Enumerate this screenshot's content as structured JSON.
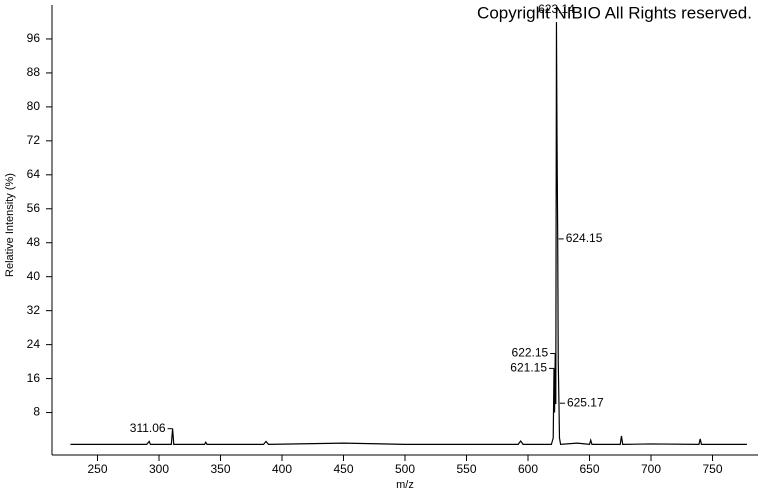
{
  "chart_data": {
    "type": "line",
    "copyright": "Copyright NIBIO All Rights reserved.",
    "x_label": "m/z",
    "y_label": "Relative Intensity (%)",
    "x": [
      228,
      290,
      292,
      293,
      294,
      310,
      311.06,
      312,
      337,
      338,
      339,
      385,
      387,
      389,
      450,
      500,
      560,
      592,
      594,
      596,
      619,
      620.5,
      621.15,
      621.6,
      622.15,
      622.6,
      623.14,
      623.6,
      624.15,
      624.6,
      625.17,
      625.6,
      626.5,
      640,
      650,
      651,
      652,
      675,
      676,
      677,
      700,
      739,
      740,
      741,
      778
    ],
    "values": [
      0.5,
      0.5,
      1.2,
      0.5,
      0.5,
      0.5,
      4.2,
      0.5,
      0.5,
      1,
      0.5,
      0.5,
      1.2,
      0.5,
      0.8,
      0.5,
      0.5,
      0.5,
      1.3,
      0.5,
      0.5,
      2,
      18.4,
      8,
      21.9,
      10,
      100,
      72.7,
      48.9,
      20,
      10.2,
      2,
      0.5,
      0.8,
      0.5,
      1.5,
      0.5,
      0.5,
      2.5,
      0.5,
      0.6,
      0.5,
      1.8,
      0.5,
      0.5
    ],
    "color": "#000000",
    "peak_labels": [
      311.06,
      621.15,
      622.15,
      623.14,
      624.15,
      625.17
    ],
    "xlim": [
      213,
      787
    ],
    "xticks": [
      250,
      300,
      350,
      400,
      450,
      500,
      550,
      600,
      650,
      700,
      750
    ],
    "ylim": [
      -2,
      104
    ],
    "yticks": [
      8,
      16,
      24,
      32,
      40,
      48,
      56,
      64,
      72,
      80,
      88,
      96
    ]
  }
}
